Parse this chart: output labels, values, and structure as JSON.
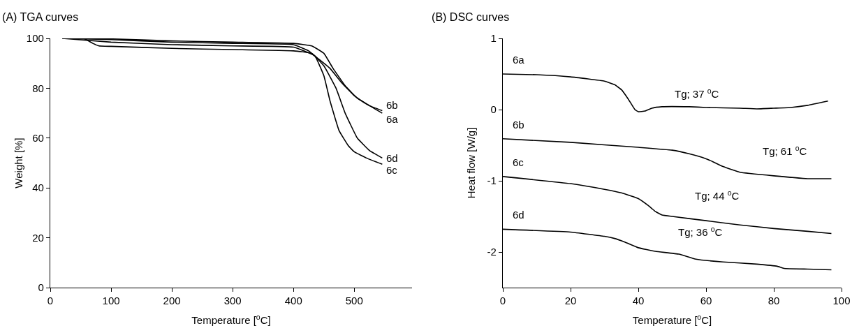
{
  "chart_data": [
    {
      "type": "line",
      "title": "(A) TGA curves",
      "xlabel": "Temperature [$^{o}$C]",
      "ylabel": "Weight [%]",
      "xlim": [
        0,
        595
      ],
      "xticks": [
        0,
        100,
        200,
        300,
        400,
        500
      ],
      "ylim": [
        0,
        100
      ],
      "yticks": [
        0,
        20,
        40,
        60,
        80,
        100
      ],
      "grid": false,
      "legend": false,
      "series": [
        {
          "name": "6a",
          "color": "#000000",
          "x": [
            20,
            100,
            200,
            300,
            400,
            425,
            440,
            460,
            480,
            500,
            525,
            546
          ],
          "values": [
            100,
            99.5,
            98.5,
            98,
            97.5,
            95,
            92,
            88,
            82,
            77,
            73,
            70
          ]
        },
        {
          "name": "6b",
          "color": "#000000",
          "x": [
            20,
            100,
            200,
            300,
            400,
            430,
            450,
            465,
            485,
            505,
            525,
            546
          ],
          "values": [
            100,
            99.8,
            99,
            98.5,
            98,
            97,
            94,
            88,
            81,
            76,
            73,
            71
          ]
        },
        {
          "name": "6c",
          "color": "#000000",
          "x": [
            20,
            100,
            200,
            300,
            400,
            435,
            450,
            460,
            475,
            490,
            500,
            520,
            546
          ],
          "values": [
            100,
            98.5,
            97.5,
            97,
            96.5,
            93,
            85,
            75,
            63,
            57,
            54.5,
            52,
            49.5
          ]
        },
        {
          "name": "6d",
          "color": "#000000",
          "x": [
            20,
            55,
            70,
            80,
            100,
            200,
            300,
            400,
            430,
            450,
            470,
            485,
            505,
            525,
            546
          ],
          "values": [
            100,
            100,
            98,
            97,
            96.8,
            96,
            95.5,
            95,
            94,
            89,
            80,
            70,
            60,
            55,
            52
          ]
        }
      ]
    },
    {
      "type": "line",
      "title": "(B) DSC curves",
      "xlabel": "Temperature [$^{o}$C]",
      "ylabel": "Heat flow [W/g]",
      "xlim": [
        0,
        100
      ],
      "xticks": [
        0,
        20,
        40,
        60,
        80,
        100
      ],
      "ylim": [
        -2.5,
        1
      ],
      "yticks": [
        -2,
        -1,
        0,
        1
      ],
      "grid": false,
      "legend": false,
      "series": [
        {
          "name": "6a",
          "color": "#000000",
          "x": [
            0,
            10,
            20,
            30,
            33,
            35,
            37,
            39,
            40,
            42,
            44,
            47,
            55,
            60,
            70,
            75,
            80,
            85,
            90,
            96
          ],
          "values": [
            0.5,
            0.49,
            0.46,
            0.4,
            0.35,
            0.28,
            0.15,
            0,
            -0.03,
            -0.02,
            0.02,
            0.04,
            0.04,
            0.03,
            0.02,
            0.01,
            0.02,
            0.03,
            0.06,
            0.12
          ]
        },
        {
          "name": "6b",
          "color": "#000000",
          "x": [
            0,
            20,
            40,
            50,
            55,
            60,
            61,
            65,
            70,
            80,
            90,
            97
          ],
          "values": [
            -0.41,
            -0.46,
            -0.53,
            -0.57,
            -0.62,
            -0.69,
            -0.71,
            -0.8,
            -0.88,
            -0.93,
            -0.97,
            -0.97
          ]
        },
        {
          "name": "6c",
          "color": "#000000",
          "x": [
            0,
            20,
            30,
            35,
            40,
            43,
            44,
            45,
            47,
            50,
            60,
            70,
            80,
            90,
            97
          ],
          "values": [
            -0.94,
            -1.04,
            -1.12,
            -1.17,
            -1.25,
            -1.35,
            -1.39,
            -1.43,
            -1.48,
            -1.5,
            -1.56,
            -1.62,
            -1.67,
            -1.71,
            -1.74
          ]
        },
        {
          "name": "6d",
          "color": "#000000",
          "x": [
            0,
            20,
            30,
            33,
            36,
            37,
            40,
            45,
            52,
            57,
            65,
            75,
            81,
            83,
            90,
            97
          ],
          "values": [
            -1.68,
            -1.72,
            -1.78,
            -1.81,
            -1.86,
            -1.88,
            -1.94,
            -1.99,
            -2.03,
            -2.1,
            -2.14,
            -2.17,
            -2.2,
            -2.23,
            -2.24,
            -2.25
          ]
        }
      ],
      "annotations": [
        "Tg; 37 $^{o}$C",
        "Tg; 61 $^{o}$C",
        "Tg; 44 $^{o}$C",
        "Tg; 36 $^{o}$C"
      ]
    }
  ]
}
